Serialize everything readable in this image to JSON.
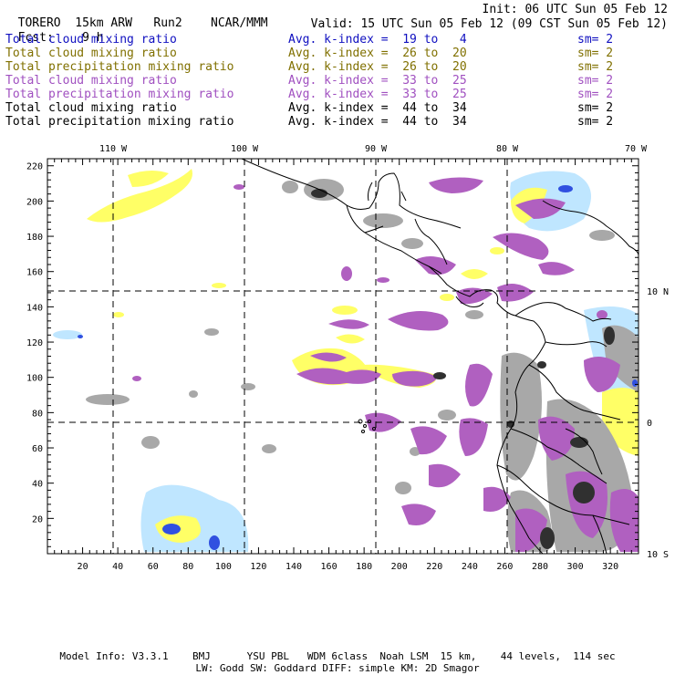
{
  "header": {
    "model": "TORERO",
    "resolution": "15km ARW",
    "run": "Run2",
    "org": "NCAR/MMM",
    "init": "Init: 06 UTC Sun 05 Feb 12",
    "fcst_label": "Fcst:",
    "fcst_value": "9 h",
    "valid": "Valid: 15 UTC Sun 05 Feb 12 (09 CST Sun 05 Feb 12)"
  },
  "legend": [
    {
      "field": "Total cloud mixing ratio",
      "kindex": "Avg. k-index =  19 to   4",
      "sm": "sm= 2",
      "color": "#1010c0"
    },
    {
      "field": "Total cloud mixing ratio",
      "kindex": "Avg. k-index =  26 to  20",
      "sm": "sm= 2",
      "color": "#807000"
    },
    {
      "field": "Total precipitation mixing ratio",
      "kindex": "Avg. k-index =  26 to  20",
      "sm": "sm= 2",
      "color": "#807000"
    },
    {
      "field": "Total cloud mixing ratio",
      "kindex": "Avg. k-index =  33 to  25",
      "sm": "sm= 2",
      "color": "#a050c0"
    },
    {
      "field": "Total precipitation mixing ratio",
      "kindex": "Avg. k-index =  33 to  25",
      "sm": "sm= 2",
      "color": "#a050c0"
    },
    {
      "field": "Total cloud mixing ratio",
      "kindex": "Avg. k-index =  44 to  34",
      "sm": "sm= 2",
      "color": "#000000"
    },
    {
      "field": "Total precipitation mixing ratio",
      "kindex": "Avg. k-index =  44 to  34",
      "sm": "sm= 2",
      "color": "#000000"
    }
  ],
  "axes": {
    "lon_labels": [
      "110 W",
      "100 W",
      "90 W",
      "80 W",
      "70 W"
    ],
    "lat_labels": [
      "10 N",
      "0",
      "10 S"
    ],
    "x_ticks": [
      "20",
      "40",
      "60",
      "80",
      "100",
      "120",
      "140",
      "160",
      "180",
      "200",
      "220",
      "240",
      "260",
      "280",
      "300",
      "320"
    ],
    "y_ticks": [
      "20",
      "40",
      "60",
      "80",
      "100",
      "120",
      "140",
      "160",
      "180",
      "200",
      "220"
    ],
    "x_range": [
      0,
      336
    ],
    "y_range": [
      0,
      224
    ]
  },
  "footer": {
    "line1": "Model Info: V3.3.1    BMJ      YSU PBL   WDM 6class  Noah LSM  15 km,    44 levels,  114 sec",
    "line2": "LW: Godd SW: Goddard DIFF: simple KM: 2D Smagor"
  },
  "colors": {
    "yellow": "#ffff55",
    "purple": "#b060c0",
    "gray": "#a0a0a0",
    "dark": "#303030",
    "lightblue": "#bfe6ff",
    "blue": "#3050e0"
  }
}
